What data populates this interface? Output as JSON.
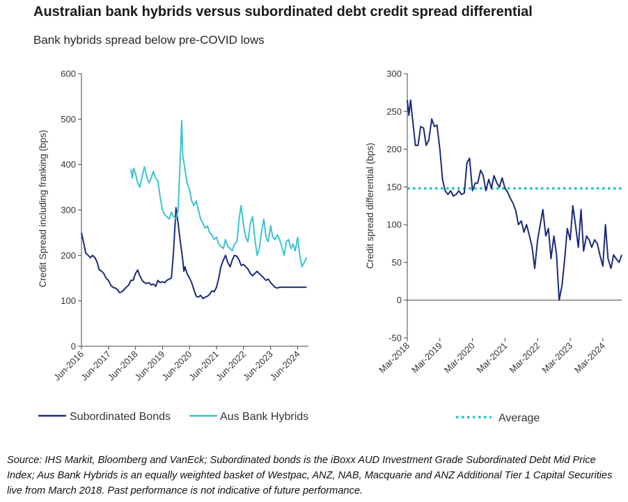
{
  "title": "Australian bank hybrids versus subordinated debt credit spread differential",
  "subtitle": "Bank hybrids spread below pre-COVID lows",
  "source": "Source: IHS Markit, Bloomberg and VanEck; Subordinated bonds is the iBoxx AUD Investment Grade Subordinated Debt Mid Price Index; Aus Bank Hybrids is an equally weighted basket of Westpac, ANZ, NAB, Macquarie and ANZ Additional Tier 1 Capital Securities live from March 2018. Past performance is not indicative of future performance.",
  "colors": {
    "sub": "#1b2a78",
    "hyb": "#3cc3cf",
    "avg": "#2fbfca",
    "axis": "#444444"
  },
  "chart_data": [
    {
      "type": "line",
      "ylabel": "Credit Spread including franking (bps)",
      "ylim": [
        0,
        600
      ],
      "yticks": [
        0,
        100,
        200,
        300,
        400,
        500,
        600
      ],
      "xlim": [
        2016.42,
        2024.82
      ],
      "xticks": [
        {
          "label": "Jun-2016",
          "x": 2016.42
        },
        {
          "label": "Jun-2017",
          "x": 2017.42
        },
        {
          "label": "Jun-2018",
          "x": 2018.42
        },
        {
          "label": "Jun-2019",
          "x": 2019.42
        },
        {
          "label": "Jun-2020",
          "x": 2020.42
        },
        {
          "label": "Jun-2021",
          "x": 2021.42
        },
        {
          "label": "Jun-2022",
          "x": 2022.42
        },
        {
          "label": "Jun-2023",
          "x": 2023.42
        },
        {
          "label": "Jun-2024",
          "x": 2024.42
        }
      ],
      "legend": "bottom",
      "series": [
        {
          "name": "Subordinated Bonds",
          "x": [
            2016.42,
            2016.5,
            2016.58,
            2016.67,
            2016.75,
            2016.83,
            2016.92,
            2017.0,
            2017.08,
            2017.17,
            2017.25,
            2017.33,
            2017.42,
            2017.5,
            2017.58,
            2017.67,
            2017.75,
            2017.83,
            2017.92,
            2018.0,
            2018.08,
            2018.17,
            2018.25,
            2018.33,
            2018.42,
            2018.5,
            2018.58,
            2018.67,
            2018.75,
            2018.83,
            2018.92,
            2019.0,
            2019.08,
            2019.17,
            2019.25,
            2019.33,
            2019.42,
            2019.5,
            2019.58,
            2019.67,
            2019.75,
            2019.83,
            2019.92,
            2020.0,
            2020.08,
            2020.17,
            2020.21,
            2020.25,
            2020.33,
            2020.42,
            2020.5,
            2020.58,
            2020.67,
            2020.75,
            2020.83,
            2020.92,
            2021.0,
            2021.08,
            2021.17,
            2021.25,
            2021.33,
            2021.42,
            2021.5,
            2021.58,
            2021.67,
            2021.75,
            2021.83,
            2021.92,
            2022.0,
            2022.08,
            2022.17,
            2022.25,
            2022.33,
            2022.42,
            2022.5,
            2022.58,
            2022.67,
            2022.75,
            2022.83,
            2022.92,
            2023.0,
            2023.08,
            2023.17,
            2023.25,
            2023.33,
            2023.42,
            2023.5,
            2023.58,
            2023.67,
            2023.75,
            2023.83,
            2023.92,
            2024.0,
            2024.08,
            2024.17,
            2024.25,
            2024.33,
            2024.42,
            2024.5,
            2024.58,
            2024.67,
            2024.75
          ],
          "values": [
            250,
            228,
            205,
            200,
            195,
            200,
            195,
            185,
            168,
            165,
            160,
            150,
            145,
            135,
            130,
            128,
            125,
            118,
            120,
            125,
            130,
            135,
            145,
            145,
            160,
            168,
            155,
            145,
            140,
            138,
            140,
            135,
            137,
            132,
            145,
            140,
            142,
            140,
            145,
            148,
            150,
            210,
            305,
            270,
            230,
            190,
            165,
            175,
            160,
            150,
            140,
            125,
            110,
            108,
            112,
            105,
            108,
            110,
            115,
            122,
            120,
            130,
            150,
            175,
            190,
            200,
            185,
            175,
            190,
            200,
            198,
            190,
            178,
            180,
            175,
            170,
            160,
            155,
            160,
            165,
            160,
            155,
            150,
            145,
            148,
            140,
            135,
            130,
            128,
            130,
            130,
            130,
            130,
            130,
            130,
            130,
            130,
            130,
            130,
            130,
            130,
            130
          ],
          "color": "#1b2a78"
        },
        {
          "name": "Aus Bank Hybrids",
          "x": [
            2018.25,
            2018.3,
            2018.35,
            2018.42,
            2018.5,
            2018.58,
            2018.67,
            2018.75,
            2018.83,
            2018.92,
            2019.0,
            2019.08,
            2019.17,
            2019.25,
            2019.33,
            2019.42,
            2019.5,
            2019.58,
            2019.67,
            2019.75,
            2019.83,
            2019.92,
            2020.0,
            2020.08,
            2020.13,
            2020.17,
            2020.25,
            2020.33,
            2020.42,
            2020.5,
            2020.58,
            2020.67,
            2020.75,
            2020.83,
            2020.92,
            2021.0,
            2021.08,
            2021.17,
            2021.25,
            2021.33,
            2021.42,
            2021.5,
            2021.58,
            2021.67,
            2021.75,
            2021.83,
            2021.92,
            2022.0,
            2022.08,
            2022.17,
            2022.21,
            2022.25,
            2022.33,
            2022.42,
            2022.5,
            2022.58,
            2022.67,
            2022.75,
            2022.83,
            2022.92,
            2023.0,
            2023.08,
            2023.17,
            2023.25,
            2023.33,
            2023.42,
            2023.5,
            2023.58,
            2023.67,
            2023.75,
            2023.83,
            2023.92,
            2024.0,
            2024.08,
            2024.17,
            2024.25,
            2024.33,
            2024.42,
            2024.5,
            2024.58,
            2024.67,
            2024.75
          ],
          "values": [
            390,
            370,
            392,
            380,
            360,
            350,
            375,
            395,
            375,
            360,
            370,
            385,
            370,
            365,
            330,
            300,
            290,
            285,
            280,
            295,
            285,
            280,
            300,
            420,
            497,
            420,
            390,
            360,
            345,
            320,
            310,
            320,
            300,
            280,
            270,
            260,
            265,
            250,
            245,
            235,
            240,
            225,
            220,
            215,
            235,
            220,
            215,
            210,
            225,
            230,
            250,
            280,
            310,
            265,
            240,
            230,
            270,
            285,
            240,
            200,
            215,
            250,
            280,
            240,
            230,
            265,
            240,
            235,
            245,
            235,
            220,
            200,
            230,
            235,
            215,
            225,
            210,
            240,
            200,
            175,
            185,
            195
          ],
          "color": "#3cc3cf"
        }
      ]
    },
    {
      "type": "line",
      "ylabel": "Credit spread differential (bps)",
      "ylim": [
        -50,
        300
      ],
      "yticks": [
        -50,
        0,
        50,
        100,
        150,
        200,
        250,
        300
      ],
      "xlim": [
        2018.17,
        2024.75
      ],
      "xticks": [
        {
          "label": "Mar-2018",
          "x": 2018.17
        },
        {
          "label": "Mar-2019",
          "x": 2019.17
        },
        {
          "label": "Mar-2020",
          "x": 2020.17
        },
        {
          "label": "Mar-2021",
          "x": 2021.17
        },
        {
          "label": "Mar-2022",
          "x": 2022.17
        },
        {
          "label": "Mar-2023",
          "x": 2023.17
        },
        {
          "label": "Mar-2024",
          "x": 2024.17
        }
      ],
      "legend": "bottom",
      "average": 148,
      "average_label": "Average",
      "series": [
        {
          "name": "Differential",
          "x": [
            2018.17,
            2018.22,
            2018.27,
            2018.33,
            2018.42,
            2018.5,
            2018.58,
            2018.67,
            2018.75,
            2018.83,
            2018.92,
            2019.0,
            2019.08,
            2019.17,
            2019.25,
            2019.33,
            2019.42,
            2019.5,
            2019.58,
            2019.67,
            2019.75,
            2019.83,
            2019.92,
            2020.0,
            2020.08,
            2020.17,
            2020.25,
            2020.33,
            2020.42,
            2020.5,
            2020.58,
            2020.67,
            2020.75,
            2020.83,
            2020.92,
            2021.0,
            2021.08,
            2021.17,
            2021.25,
            2021.33,
            2021.42,
            2021.5,
            2021.58,
            2021.67,
            2021.75,
            2021.83,
            2021.92,
            2022.0,
            2022.08,
            2022.17,
            2022.25,
            2022.33,
            2022.42,
            2022.5,
            2022.58,
            2022.67,
            2022.75,
            2022.83,
            2022.92,
            2023.0,
            2023.08,
            2023.17,
            2023.25,
            2023.33,
            2023.42,
            2023.5,
            2023.58,
            2023.67,
            2023.75,
            2023.83,
            2023.92,
            2024.0,
            2024.08,
            2024.17,
            2024.25,
            2024.33,
            2024.42,
            2024.5,
            2024.58,
            2024.67,
            2024.75
          ],
          "values": [
            265,
            245,
            265,
            240,
            205,
            205,
            230,
            228,
            205,
            212,
            240,
            230,
            232,
            200,
            160,
            145,
            140,
            145,
            138,
            140,
            145,
            140,
            142,
            182,
            188,
            145,
            155,
            155,
            172,
            165,
            145,
            160,
            148,
            165,
            155,
            150,
            162,
            148,
            143,
            135,
            128,
            118,
            100,
            105,
            90,
            100,
            85,
            70,
            42,
            80,
            100,
            120,
            85,
            95,
            55,
            85,
            60,
            0,
            20,
            55,
            95,
            80,
            125,
            100,
            70,
            120,
            65,
            85,
            80,
            70,
            80,
            75,
            60,
            45,
            100,
            55,
            42,
            60,
            55,
            50,
            60
          ]
        }
      ]
    }
  ]
}
